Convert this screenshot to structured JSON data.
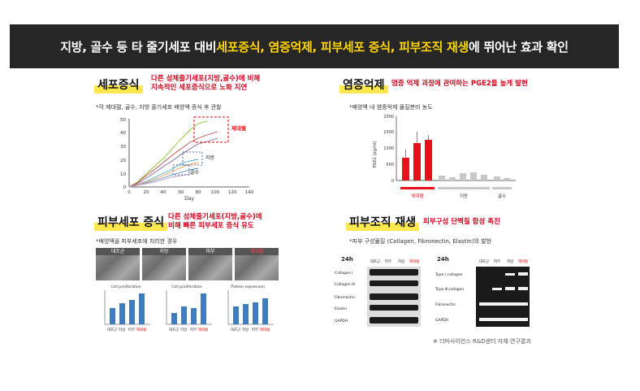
{
  "banner": {
    "part1": "지방, 골수 등 타 줄기세포 대비 ",
    "hl1": "세포증식, 염증억제, 피부세포 증식, 피부조직 재생",
    "part2": "에 뛰어난 효과 확인"
  },
  "sec1": {
    "title": "세포증식",
    "desc1": "다른 성체줄기세포(지방,골수)에 비해",
    "desc2": "지속적인 세포증식으로 노화 지연",
    "bullet": "*각 제대혈, 골수, 지방 줄기세포 배양액 증식 후 관찰",
    "chart": {
      "xlabel": "Day",
      "xticks": [
        "0",
        "20",
        "40",
        "60",
        "80",
        "100",
        "120",
        "140"
      ],
      "yticks": [
        "0",
        "10",
        "20",
        "30",
        "40",
        "50"
      ],
      "label_cord": "제대혈",
      "label_fat": "지방",
      "label_bone": "골수"
    }
  },
  "sec2": {
    "title": "염증억제",
    "desc": "염증 억제 과정에 관여하는 PGE2를 높게 발현",
    "bullet": "*배양액 내 염증억제 물질분비 농도",
    "chart": {
      "ylabel": "PGE2 (pg/ml)",
      "yticks": [
        "0",
        "500",
        "1000",
        "1500",
        "2000"
      ],
      "groups": [
        "제대혈",
        "지방",
        "골수"
      ]
    }
  },
  "sec3": {
    "title": "피부세포 증식",
    "desc1": "다른 성체줄기세포(지방,골수)에",
    "desc2": "비해 빠른 피부세포 증식 유도",
    "bullet": "*배양액을 피부세포에 처리한 경우",
    "micro": [
      "대조군",
      "지방",
      "피부",
      "제대혈"
    ],
    "chart_titles": [
      "Cell proliferation",
      "Cell proliferation",
      "Protein expression"
    ],
    "xcats": [
      "대조군",
      "지방",
      "피부",
      "제대혈"
    ]
  },
  "sec4": {
    "title": "피부조직 재생",
    "desc": "피부구성 단백질 합성 촉진",
    "bullet": "*피부 구성물질 (Collagen, Fibronectin, Elastin)의 발현",
    "time1": "24h",
    "time2": "24h",
    "cols": [
      "대조군",
      "피부",
      "지방",
      "제대혈"
    ],
    "rows1": [
      "Collagen Ⅰ",
      "Collagen Ⅳ",
      "Fibronectin",
      "Elastin",
      "GAPDH"
    ],
    "rows2": [
      "Type Ⅰ collagen",
      "Type Ⅲ collagen",
      "Fibronectin",
      "GAPDH"
    ]
  },
  "source": "※ 더마사이언스 R&D센터 자체 연구결과"
}
